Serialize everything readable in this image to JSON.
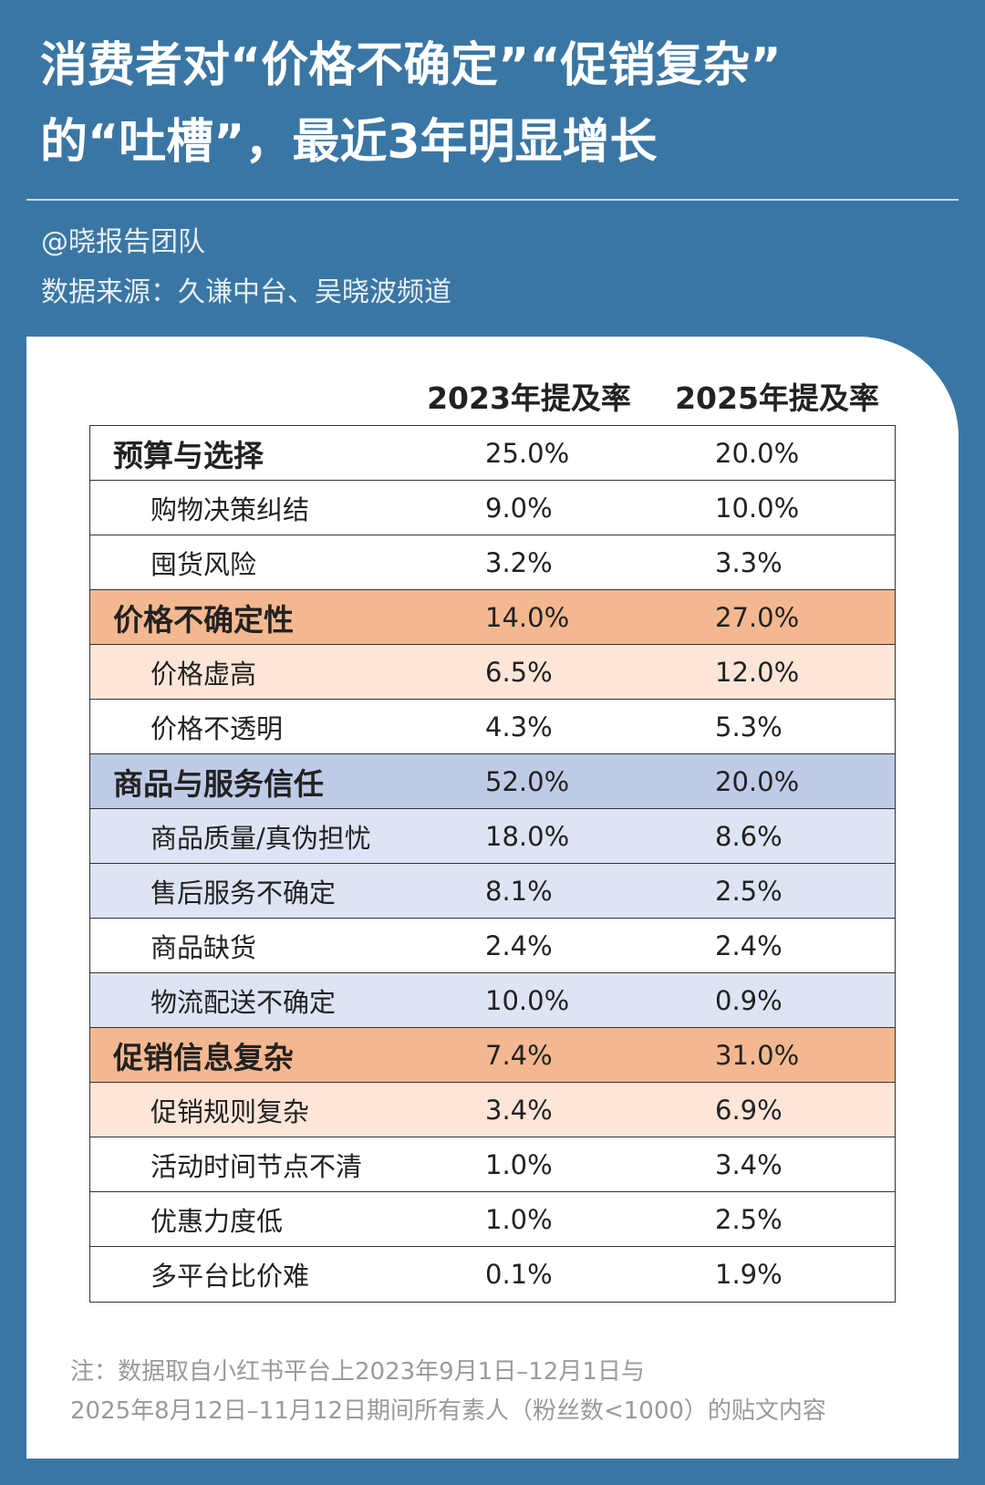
{
  "header": {
    "title_lines": [
      "消费者对“价格不确定”“促销复杂”",
      "的“吐槽”，最近3年明显增长"
    ],
    "author": "@晓报告团队",
    "source": "数据来源：久谦中台、吴晓波频道"
  },
  "table": {
    "columns": [
      "2023年提及率",
      "2025年提及率"
    ],
    "rows": [
      {
        "label": "预算与选择",
        "level": "category",
        "fill": "#ffffff",
        "values": [
          "25.0%",
          "20.0%"
        ]
      },
      {
        "label": "购物决策纠结",
        "level": "sub",
        "fill": "#ffffff",
        "values": [
          "9.0%",
          "10.0%"
        ]
      },
      {
        "label": "囤货风险",
        "level": "sub",
        "fill": "#ffffff",
        "values": [
          "3.2%",
          "3.3%"
        ]
      },
      {
        "label": "价格不确定性",
        "level": "category",
        "fill": "#f4b891",
        "values": [
          "14.0%",
          "27.0%"
        ]
      },
      {
        "label": "价格虚高",
        "level": "sub",
        "fill": "#fde6d8",
        "values": [
          "6.5%",
          "12.0%"
        ]
      },
      {
        "label": "价格不透明",
        "level": "sub",
        "fill": "#ffffff",
        "values": [
          "4.3%",
          "5.3%"
        ]
      },
      {
        "label": "商品与服务信任",
        "level": "category",
        "fill": "#bfcbe6",
        "values": [
          "52.0%",
          "20.0%"
        ]
      },
      {
        "label": "商品质量/真伪担忧",
        "level": "sub",
        "fill": "#dde4f3",
        "values": [
          "18.0%",
          "8.6%"
        ]
      },
      {
        "label": "售后服务不确定",
        "level": "sub",
        "fill": "#dde4f3",
        "values": [
          "8.1%",
          "2.5%"
        ]
      },
      {
        "label": "商品缺货",
        "level": "sub",
        "fill": "#ffffff",
        "values": [
          "2.4%",
          "2.4%"
        ]
      },
      {
        "label": "物流配送不确定",
        "level": "sub",
        "fill": "#dde4f3",
        "values": [
          "10.0%",
          "0.9%"
        ]
      },
      {
        "label": "促销信息复杂",
        "level": "category",
        "fill": "#f4b891",
        "values": [
          "7.4%",
          "31.0%"
        ]
      },
      {
        "label": "促销规则复杂",
        "level": "sub",
        "fill": "#fde6d8",
        "values": [
          "3.4%",
          "6.9%"
        ]
      },
      {
        "label": "活动时间节点不清",
        "level": "sub",
        "fill": "#ffffff",
        "values": [
          "1.0%",
          "3.4%"
        ]
      },
      {
        "label": "优惠力度低",
        "level": "sub",
        "fill": "#ffffff",
        "values": [
          "1.0%",
          "2.5%"
        ]
      },
      {
        "label": "多平台比价难",
        "level": "sub",
        "fill": "#ffffff",
        "values": [
          "0.1%",
          "1.9%"
        ]
      }
    ]
  },
  "footnote": [
    "注：数据取自小红书平台上2023年9月1日–12月1日与",
    "2025年8月12日–11月12日期间所有素人（粉丝数<1000）的贴文内容"
  ]
}
